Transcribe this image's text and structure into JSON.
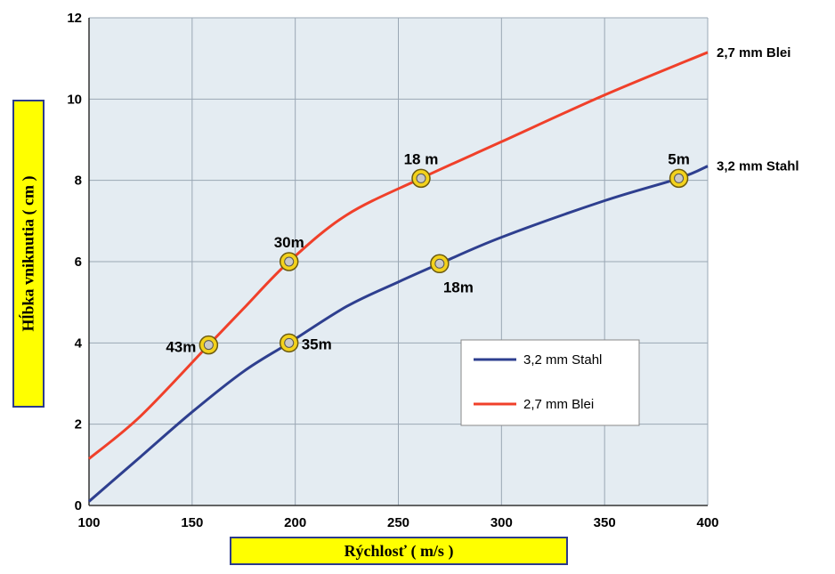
{
  "chart_data": {
    "type": "line",
    "xlabel": "Rýchlosť ( m/s )",
    "ylabel": "Hĺbka vniknutia ( cm )",
    "xlim": [
      100,
      400
    ],
    "ylim": [
      0,
      12
    ],
    "x_ticks": [
      "100",
      "150",
      "200",
      "250",
      "300",
      "350",
      "400"
    ],
    "y_ticks": [
      "0",
      "2",
      "4",
      "6",
      "8",
      "10",
      "12"
    ],
    "grid": true,
    "legend_position": "right-middle",
    "series": [
      {
        "name": "3,2 mm Stahl",
        "end_label": "3,2 mm Stahl",
        "color": "#2e3f8f",
        "x": [
          100,
          125,
          150,
          175,
          197,
          225,
          250,
          270,
          300,
          350,
          386,
          400
        ],
        "y": [
          0.1,
          1.2,
          2.3,
          3.3,
          4.0,
          4.9,
          5.5,
          5.95,
          6.6,
          7.5,
          8.05,
          8.35
        ]
      },
      {
        "name": "2,7 mm Blei",
        "end_label": "2,7 mm Blei",
        "color": "#f0402a",
        "x": [
          100,
          125,
          158,
          175,
          197,
          225,
          261,
          300,
          350,
          400
        ],
        "y": [
          1.15,
          2.2,
          3.95,
          4.85,
          6.0,
          7.15,
          8.05,
          8.95,
          10.1,
          11.15
        ]
      }
    ],
    "annotations": [
      {
        "x": 158,
        "y": 3.95,
        "text": "43m",
        "pos": "left"
      },
      {
        "x": 197,
        "y": 6.0,
        "text": "30m",
        "pos": "above"
      },
      {
        "x": 261,
        "y": 8.05,
        "text": "18 m",
        "pos": "above"
      },
      {
        "x": 197,
        "y": 4.0,
        "text": "35m",
        "pos": "right"
      },
      {
        "x": 270,
        "y": 5.95,
        "text": "18m",
        "pos": "below"
      },
      {
        "x": 386,
        "y": 8.05,
        "text": "5m",
        "pos": "above"
      }
    ]
  }
}
